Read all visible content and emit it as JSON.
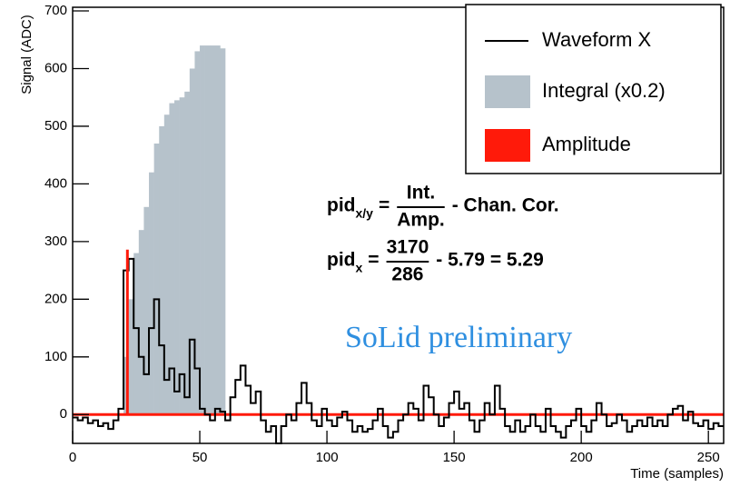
{
  "chart_data": {
    "type": "waveform",
    "xlabel": "Time (samples)",
    "ylabel": "Signal (ADC)",
    "xlim": [
      0,
      256
    ],
    "ylim": [
      -50,
      700
    ],
    "xticks": [
      0,
      50,
      100,
      150,
      200,
      250
    ],
    "yticks": [
      0,
      100,
      200,
      300,
      400,
      500,
      600,
      700
    ],
    "legend": "top-right",
    "series": [
      {
        "name": "Waveform X",
        "color": "#000000",
        "x": [
          0,
          2,
          4,
          6,
          8,
          10,
          12,
          14,
          16,
          18,
          20,
          22,
          24,
          26,
          28,
          30,
          32,
          34,
          36,
          38,
          40,
          42,
          44,
          46,
          48,
          50,
          52,
          54,
          56,
          58,
          60,
          62,
          64,
          66,
          68,
          70,
          72,
          74,
          76,
          78,
          80,
          82,
          84,
          86,
          88,
          90,
          92,
          94,
          96,
          98,
          100,
          102,
          104,
          106,
          108,
          110,
          112,
          114,
          116,
          118,
          120,
          122,
          124,
          126,
          128,
          130,
          132,
          134,
          136,
          138,
          140,
          142,
          144,
          146,
          148,
          150,
          152,
          154,
          156,
          158,
          160,
          162,
          164,
          166,
          168,
          170,
          172,
          174,
          176,
          178,
          180,
          182,
          184,
          186,
          188,
          190,
          192,
          194,
          196,
          198,
          200,
          202,
          204,
          206,
          208,
          210,
          212,
          214,
          216,
          218,
          220,
          222,
          224,
          226,
          228,
          230,
          232,
          234,
          236,
          238,
          240,
          242,
          244,
          246,
          248,
          250,
          252,
          254
        ],
        "values": [
          -5,
          -10,
          -5,
          -15,
          -10,
          -20,
          -15,
          -25,
          -10,
          10,
          250,
          270,
          150,
          100,
          70,
          150,
          200,
          120,
          60,
          80,
          40,
          70,
          30,
          130,
          80,
          10,
          0,
          -10,
          10,
          5,
          -10,
          30,
          60,
          85,
          50,
          20,
          40,
          -10,
          -30,
          -20,
          -50,
          -20,
          0,
          -10,
          20,
          55,
          20,
          -10,
          -20,
          10,
          -10,
          -20,
          -5,
          5,
          -10,
          -30,
          -20,
          -30,
          -25,
          -10,
          10,
          -20,
          -40,
          -30,
          -10,
          0,
          20,
          10,
          -10,
          50,
          30,
          0,
          -20,
          -5,
          20,
          40,
          10,
          20,
          -10,
          -30,
          -10,
          20,
          0,
          50,
          10,
          -20,
          -30,
          -10,
          -30,
          -20,
          0,
          -20,
          -30,
          10,
          -20,
          -30,
          -40,
          -20,
          -10,
          10,
          -20,
          -30,
          -10,
          20,
          0,
          -20,
          -15,
          0,
          -10,
          -30,
          -20,
          -10,
          -20,
          -5,
          -20,
          -10,
          -20,
          0,
          10,
          15,
          -10,
          5,
          -15,
          -20,
          -10,
          -25,
          -15,
          -20
        ]
      },
      {
        "name": "Integral (x0.2)",
        "color": "#b6c2cb",
        "bins": [
          20,
          22,
          24,
          26,
          28,
          30,
          32,
          34,
          36,
          38,
          40,
          42,
          44,
          46,
          48,
          50,
          52,
          54,
          56,
          58,
          60
        ],
        "values": [
          100,
          200,
          280,
          320,
          360,
          420,
          470,
          500,
          520,
          540,
          545,
          550,
          560,
          600,
          630,
          640,
          640,
          640,
          640,
          635
        ]
      },
      {
        "name": "Amplitude",
        "color": "#ff1a0a",
        "bins": [
          21,
          22
        ],
        "values": [
          286
        ]
      }
    ],
    "baseline": {
      "value": 0,
      "color": "#ff1a0a"
    },
    "annotations": {
      "formula1": {
        "lhs": "pid",
        "sub": "x/y",
        "eq": "=",
        "num": "Int.",
        "den": "Amp.",
        "rest": "- Chan. Cor."
      },
      "formula2": {
        "lhs": "pid",
        "sub": "x",
        "eq": "=",
        "num": "3170",
        "den": "286",
        "rest": "- 5.79 = 5.29"
      },
      "watermark": {
        "text": "SoLid preliminary",
        "color": "#2f8fe0"
      }
    }
  }
}
